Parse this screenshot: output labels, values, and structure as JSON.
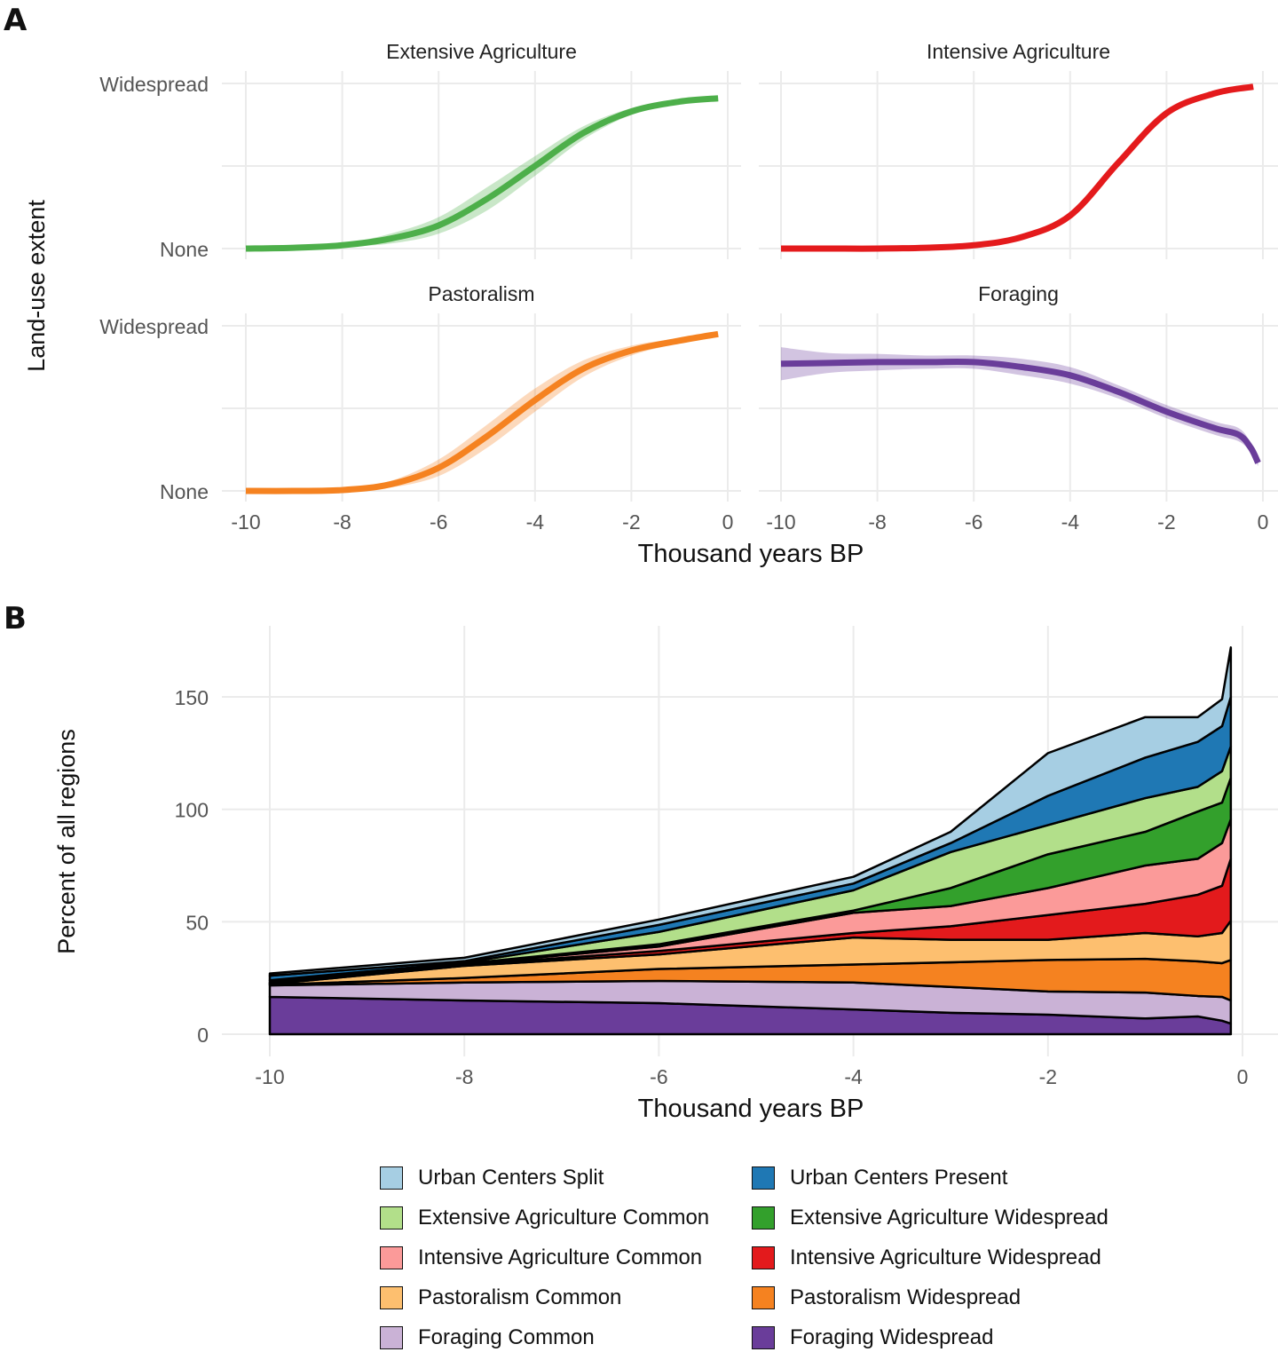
{
  "chart_data": [
    {
      "panel": "A",
      "type": "line",
      "xlabel": "Thousand years BP",
      "ylabel": "Land-use extent",
      "xlim": [
        -10,
        0
      ],
      "xticks": [
        "-10",
        "-8",
        "-6",
        "-4",
        "-2",
        "0"
      ],
      "yticks": [
        "None",
        "Widespread"
      ],
      "ylim": [
        0,
        1
      ],
      "grid": true,
      "facets": [
        {
          "title": "Extensive Agriculture",
          "color": "#4daf4a",
          "x": [
            -10,
            -9,
            -8,
            -7,
            -6,
            -5,
            -4,
            -3,
            -2,
            -1,
            -0.2
          ],
          "y": [
            0,
            0.005,
            0.02,
            0.06,
            0.14,
            0.3,
            0.5,
            0.7,
            0.83,
            0.89,
            0.91
          ],
          "band": [
            0,
            0.003,
            0.01,
            0.03,
            0.05,
            0.07,
            0.06,
            0.04,
            0.02,
            0.01,
            0.01
          ]
        },
        {
          "title": "Intensive Agriculture",
          "color": "#e41a1c",
          "x": [
            -10,
            -9,
            -8,
            -7,
            -6,
            -5,
            -4,
            -3,
            -2,
            -1,
            -0.2
          ],
          "y": [
            0,
            0,
            0,
            0.005,
            0.02,
            0.07,
            0.2,
            0.52,
            0.82,
            0.94,
            0.98
          ],
          "band": [
            0,
            0,
            0,
            0.003,
            0.005,
            0.008,
            0.01,
            0.01,
            0.01,
            0.008,
            0.008
          ]
        },
        {
          "title": "Pastoralism",
          "color": "#f58220",
          "x": [
            -10,
            -9,
            -8,
            -7,
            -6,
            -5,
            -4,
            -3,
            -2,
            -1,
            -0.2
          ],
          "y": [
            0,
            0,
            0.005,
            0.04,
            0.14,
            0.33,
            0.55,
            0.74,
            0.85,
            0.91,
            0.95
          ],
          "band": [
            0,
            0,
            0.003,
            0.02,
            0.05,
            0.07,
            0.07,
            0.05,
            0.03,
            0.015,
            0.01
          ]
        },
        {
          "title": "Foraging",
          "color": "#6a3d9a",
          "x": [
            -10,
            -9,
            -8,
            -7,
            -6,
            -5,
            -4,
            -3,
            -2,
            -1,
            -0.5,
            -0.25,
            -0.1
          ],
          "y": [
            0.77,
            0.775,
            0.78,
            0.78,
            0.78,
            0.75,
            0.7,
            0.6,
            0.48,
            0.38,
            0.34,
            0.26,
            0.17
          ],
          "band": [
            0.1,
            0.06,
            0.05,
            0.04,
            0.04,
            0.05,
            0.05,
            0.04,
            0.04,
            0.04,
            0.04,
            0.03,
            0.02
          ]
        }
      ]
    },
    {
      "panel": "B",
      "type": "area",
      "stacked": true,
      "xlabel": "Thousand years BP",
      "ylabel": "Percent of all regions",
      "xlim": [
        -10,
        0
      ],
      "ylim": [
        0,
        175
      ],
      "xticks": [
        "-10",
        "-8",
        "-6",
        "-4",
        "-2",
        "0"
      ],
      "yticks": [
        "0",
        "50",
        "100",
        "150"
      ],
      "grid": true,
      "legend_position": "bottom",
      "x": [
        -10,
        -8,
        -6,
        -4,
        -3,
        -2,
        -1,
        -0.46,
        -0.21,
        -0.12
      ],
      "series": [
        {
          "name": "Foraging Widespread",
          "color": "#6a3d9a",
          "values": [
            16.6,
            15,
            13.8,
            11,
            9.5,
            8.7,
            7,
            7.9,
            6,
            4.7
          ]
        },
        {
          "name": "Foraging Common",
          "color": "#cab2d6",
          "values": [
            5.1,
            8,
            9.9,
            12,
            11.5,
            10.3,
            11.5,
            9.1,
            10.6,
            10.3
          ]
        },
        {
          "name": "Pastoralism Widespread",
          "color": "#f58220",
          "values": [
            0.3,
            2,
            5.3,
            8,
            11,
            14,
            15,
            15.4,
            15,
            18
          ]
        },
        {
          "name": "Pastoralism Common",
          "color": "#fdbf6f",
          "values": [
            0.3,
            5.4,
            6.5,
            12,
            10,
            9,
            11.5,
            11.1,
            13.4,
            17.5
          ]
        },
        {
          "name": "Intensive Agriculture Widespread",
          "color": "#e31a1c",
          "values": [
            0.2,
            0.4,
            1.5,
            2,
            6,
            11,
            13,
            18.5,
            21,
            27.5
          ]
        },
        {
          "name": "Intensive Agriculture Common",
          "color": "#fb9a99",
          "values": [
            0.2,
            0.4,
            2,
            9,
            9,
            12,
            17,
            16,
            19,
            17.6
          ]
        },
        {
          "name": "Extensive Agriculture Widespread",
          "color": "#33a02c",
          "values": [
            0.3,
            0.2,
            1,
            1,
            8,
            15,
            15,
            21,
            18,
            18.4
          ]
        },
        {
          "name": "Extensive Agriculture Common",
          "color": "#b2df8a",
          "values": [
            1,
            0.4,
            5.5,
            9,
            16,
            13,
            15,
            11,
            14,
            14
          ]
        },
        {
          "name": "Urban Centers Present",
          "color": "#1f78b4",
          "values": [
            2,
            0.7,
            3.1,
            3,
            4,
            13,
            18,
            20,
            20,
            22
          ]
        },
        {
          "name": "Urban Centers Split",
          "color": "#a6cee3",
          "values": [
            1,
            1.5,
            2.4,
            3,
            5,
            19,
            18,
            11,
            12,
            22
          ]
        }
      ]
    }
  ],
  "panel_labels": {
    "a": "A",
    "b": "B"
  },
  "legend": [
    {
      "name": "Urban Centers Split",
      "color": "#a6cee3"
    },
    {
      "name": "Urban Centers Present",
      "color": "#1f78b4"
    },
    {
      "name": "Extensive Agriculture Common",
      "color": "#b2df8a"
    },
    {
      "name": "Extensive Agriculture Widespread",
      "color": "#33a02c"
    },
    {
      "name": "Intensive Agriculture Common",
      "color": "#fb9a99"
    },
    {
      "name": "Intensive Agriculture Widespread",
      "color": "#e31a1c"
    },
    {
      "name": "Pastoralism Common",
      "color": "#fdbf6f"
    },
    {
      "name": "Pastoralism Widespread",
      "color": "#f58220"
    },
    {
      "name": "Foraging Common",
      "color": "#cab2d6"
    },
    {
      "name": "Foraging Widespread",
      "color": "#6a3d9a"
    }
  ]
}
